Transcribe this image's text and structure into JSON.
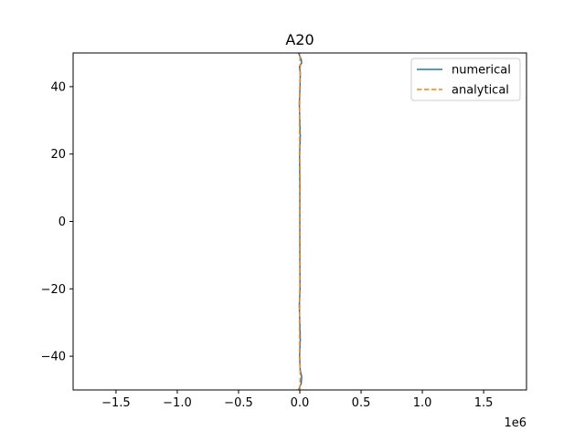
{
  "chart_data": {
    "type": "line",
    "title": "A20",
    "xlabel": "",
    "ylabel": "",
    "x_offset_label": "1e6",
    "xlim": [
      -1.85,
      1.85
    ],
    "ylim": [
      -50,
      50
    ],
    "x_ticks": [
      -1.5,
      -1.0,
      -0.5,
      0.0,
      0.5,
      1.0,
      1.5
    ],
    "x_tick_labels": [
      "−1.5",
      "−1.0",
      "−0.5",
      "0.0",
      "0.5",
      "1.0",
      "1.5"
    ],
    "y_ticks": [
      -40,
      -20,
      0,
      20,
      40
    ],
    "y_tick_labels": [
      "−40",
      "−20",
      "0",
      "20",
      "40"
    ],
    "grid": false,
    "legend_position": "top-right",
    "series": [
      {
        "name": "numerical",
        "color": "#1f77b4",
        "style": "solid",
        "x": [
          -0.01,
          0.012,
          0.015,
          0.003,
          -0.002,
          0.004,
          0.0,
          -0.004,
          0.002,
          0.0,
          0.0,
          0.0,
          -0.002,
          0.004,
          0.0,
          -0.004,
          0.002,
          0.004,
          -0.003,
          0.015,
          0.012,
          -0.01
        ],
        "y": [
          -50,
          -48,
          -46,
          -44,
          -40,
          -35,
          -30,
          -25,
          -20,
          -10,
          0,
          10,
          20,
          25,
          30,
          35,
          40,
          44,
          46,
          47,
          48,
          50
        ]
      },
      {
        "name": "analytical",
        "color": "#ff7f0e",
        "style": "dashed",
        "x": [
          0.0,
          0.004,
          0.0,
          -0.002,
          0.0,
          0.002,
          0.0,
          0.002,
          0.0,
          -0.002,
          0.0,
          0.004,
          0.0
        ],
        "y": [
          -50,
          -46,
          -40,
          -30,
          -20,
          -10,
          0,
          10,
          20,
          30,
          40,
          46,
          50
        ]
      }
    ]
  }
}
